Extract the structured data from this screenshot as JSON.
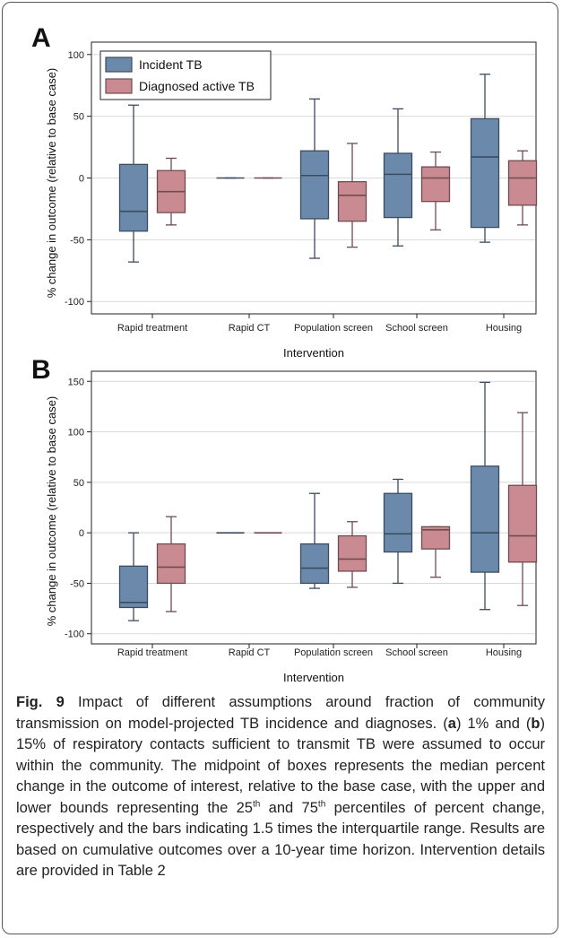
{
  "chart_data": [
    {
      "type": "boxplot",
      "panel": "A",
      "xlabel": "Intervention",
      "ylabel": "% change in outcome (relative to base case)",
      "ylim": [
        -110,
        110
      ],
      "yticks": [
        100,
        50,
        0,
        -50,
        -100
      ],
      "categories": [
        "Rapid treatment",
        "Rapid CT",
        "Population screen",
        "School screen",
        "Housing"
      ],
      "legend_position": "top-left",
      "series": [
        {
          "name": "Incident TB",
          "color": "#6b8aab",
          "boxes": [
            {
              "whisker_low": -68,
              "q1": -43,
              "median": -27,
              "q3": 11,
              "whisker_high": 59
            },
            {
              "whisker_low": 0,
              "q1": 0,
              "median": 0,
              "q3": 0,
              "whisker_high": 0
            },
            {
              "whisker_low": -65,
              "q1": -33,
              "median": 2,
              "q3": 22,
              "whisker_high": 64
            },
            {
              "whisker_low": -55,
              "q1": -32,
              "median": 3,
              "q3": 20,
              "whisker_high": 56
            },
            {
              "whisker_low": -52,
              "q1": -40,
              "median": 17,
              "q3": 48,
              "whisker_high": 84
            }
          ]
        },
        {
          "name": "Diagnosed active TB",
          "color": "#c98b91",
          "boxes": [
            {
              "whisker_low": -38,
              "q1": -28,
              "median": -11,
              "q3": 6,
              "whisker_high": 16
            },
            {
              "whisker_low": 0,
              "q1": 0,
              "median": 0,
              "q3": 0,
              "whisker_high": 0
            },
            {
              "whisker_low": -56,
              "q1": -35,
              "median": -14,
              "q3": -3,
              "whisker_high": 28
            },
            {
              "whisker_low": -42,
              "q1": -19,
              "median": 0,
              "q3": 9,
              "whisker_high": 21
            },
            {
              "whisker_low": -38,
              "q1": -22,
              "median": 0,
              "q3": 14,
              "whisker_high": 22
            }
          ]
        }
      ]
    },
    {
      "type": "boxplot",
      "panel": "B",
      "xlabel": "Intervention",
      "ylabel": "% change in outcome (relative to base case)",
      "ylim": [
        -110,
        160
      ],
      "yticks": [
        150,
        100,
        50,
        0,
        -50,
        -100
      ],
      "categories": [
        "Rapid treatment",
        "Rapid CT",
        "Population screen",
        "School screen",
        "Housing"
      ],
      "series": [
        {
          "name": "Incident TB",
          "color": "#6b8aab",
          "boxes": [
            {
              "whisker_low": -87,
              "q1": -74,
              "median": -69,
              "q3": -33,
              "whisker_high": 0
            },
            {
              "whisker_low": 0,
              "q1": 0,
              "median": 0,
              "q3": 0,
              "whisker_high": 0
            },
            {
              "whisker_low": -55,
              "q1": -50,
              "median": -35,
              "q3": -11,
              "whisker_high": 39
            },
            {
              "whisker_low": -50,
              "q1": -19,
              "median": -1,
              "q3": 39,
              "whisker_high": 53
            },
            {
              "whisker_low": -76,
              "q1": -39,
              "median": 0,
              "q3": 66,
              "whisker_high": 149
            }
          ]
        },
        {
          "name": "Diagnosed active TB",
          "color": "#c98b91",
          "boxes": [
            {
              "whisker_low": -78,
              "q1": -50,
              "median": -34,
              "q3": -11,
              "whisker_high": 16
            },
            {
              "whisker_low": 0,
              "q1": 0,
              "median": 0,
              "q3": 0,
              "whisker_high": 0
            },
            {
              "whisker_low": -54,
              "q1": -38,
              "median": -26,
              "q3": -3,
              "whisker_high": 11
            },
            {
              "whisker_low": -44,
              "q1": -16,
              "median": 3,
              "q3": 6,
              "whisker_high": 6
            },
            {
              "whisker_low": -72,
              "q1": -29,
              "median": -3,
              "q3": 47,
              "whisker_high": 119
            }
          ]
        }
      ]
    }
  ],
  "caption": {
    "fig_label": "Fig. 9",
    "part1": " Impact of different assumptions around fraction of community transmission on model-projected TB incidence and diagnoses. (",
    "a": "a",
    "part2": ") 1% and (",
    "b": "b",
    "part3": ") 15% of respiratory contacts sufficient to transmit TB were assumed to occur within the community. The midpoint of boxes represents the median percent change in the outcome of interest, relative to the base case, with the upper and lower bounds representing the 25",
    "sup1": "th",
    "part4": " and 75",
    "sup2": "th",
    "part5": " percentiles of percent change, respectively and the bars indicating 1.5 times the interquartile range. Results are based on cumulative outcomes over a 10-year time horizon. Intervention details are provided in Table 2"
  }
}
